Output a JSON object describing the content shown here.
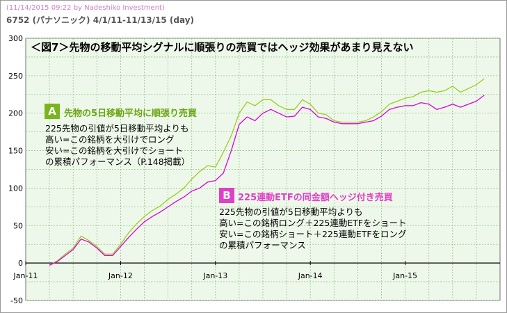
{
  "header": {
    "credit": "(11/14/2015 09:22 by Nadeshiko Investment)",
    "heading": "6752 (パナソニック) 4/1/11-11/13/15 (day)"
  },
  "annotation_a": {
    "badge": "A",
    "title": "先物の5日移動平均に順張り売買",
    "lines": [
      "225先物の引値が5日移動平均よりも",
      "高い=この銘柄を大引けでロング",
      "安い=この銘柄を大引けでショート",
      "の累積パフォーマンス（P.148掲載）"
    ]
  },
  "annotation_b": {
    "badge": "B",
    "title": "225連動ETFの同金額ヘッジ付き売買",
    "lines": [
      "225先物の引値が5日移動平均よりも",
      "高い=この銘柄ロング＋225連動ETFをショート",
      "安い=この銘柄ショート＋225連動ETFをロング",
      "の累積パフォーマンス"
    ]
  },
  "colors": {
    "series_a": "#9acd20",
    "series_b": "#dd00dd",
    "badge_a": "#7ab51d",
    "badge_b": "#e040c8",
    "plot_bg": "#eef8ea",
    "grid": "#8fc48a"
  },
  "chart_data": {
    "type": "line",
    "title": "＜図7＞先物の移動平均シグナルに順張りの売買ではヘッジ効果があまり見えない",
    "xlabel": "",
    "ylabel": "",
    "x_ticks": [
      "Jan-11",
      "Jan-12",
      "Jan-13",
      "Jan-14",
      "Jan-15"
    ],
    "x_range": [
      "2011-01",
      "2016-01"
    ],
    "y_ticks": [
      -50,
      0,
      50,
      100,
      150,
      200,
      250,
      300
    ],
    "ylim": [
      -50,
      300
    ],
    "grid": true,
    "legend": "none",
    "series": [
      {
        "name": "A",
        "x": [
          "2011-04",
          "2011-05",
          "2011-06",
          "2011-07",
          "2011-08",
          "2011-09",
          "2011-10",
          "2011-11",
          "2011-12",
          "2012-01",
          "2012-02",
          "2012-03",
          "2012-04",
          "2012-05",
          "2012-06",
          "2012-07",
          "2012-08",
          "2012-09",
          "2012-10",
          "2012-11",
          "2012-12",
          "2013-01",
          "2013-02",
          "2013-03",
          "2013-04",
          "2013-05",
          "2013-06",
          "2013-07",
          "2013-08",
          "2013-09",
          "2013-10",
          "2013-11",
          "2013-12",
          "2014-01",
          "2014-02",
          "2014-03",
          "2014-04",
          "2014-05",
          "2014-06",
          "2014-07",
          "2014-08",
          "2014-09",
          "2014-10",
          "2014-11",
          "2014-12",
          "2015-01",
          "2015-02",
          "2015-03",
          "2015-04",
          "2015-05",
          "2015-06",
          "2015-07",
          "2015-08",
          "2015-09",
          "2015-10",
          "2015-11"
        ],
        "values": [
          -3,
          3,
          12,
          20,
          36,
          30,
          22,
          12,
          12,
          25,
          40,
          52,
          62,
          70,
          76,
          85,
          92,
          100,
          112,
          122,
          130,
          128,
          148,
          170,
          200,
          215,
          210,
          218,
          218,
          210,
          205,
          205,
          218,
          212,
          200,
          198,
          190,
          188,
          188,
          188,
          190,
          195,
          202,
          212,
          216,
          220,
          222,
          228,
          230,
          228,
          230,
          236,
          228,
          233,
          238,
          246
        ]
      },
      {
        "name": "B",
        "x": [
          "2011-04",
          "2011-05",
          "2011-06",
          "2011-07",
          "2011-08",
          "2011-09",
          "2011-10",
          "2011-11",
          "2011-12",
          "2012-01",
          "2012-02",
          "2012-03",
          "2012-04",
          "2012-05",
          "2012-06",
          "2012-07",
          "2012-08",
          "2012-09",
          "2012-10",
          "2012-11",
          "2012-12",
          "2013-01",
          "2013-02",
          "2013-03",
          "2013-04",
          "2013-05",
          "2013-06",
          "2013-07",
          "2013-08",
          "2013-09",
          "2013-10",
          "2013-11",
          "2013-12",
          "2014-01",
          "2014-02",
          "2014-03",
          "2014-04",
          "2014-05",
          "2014-06",
          "2014-07",
          "2014-08",
          "2014-09",
          "2014-10",
          "2014-11",
          "2014-12",
          "2015-01",
          "2015-02",
          "2015-03",
          "2015-04",
          "2015-05",
          "2015-06",
          "2015-07",
          "2015-08",
          "2015-09",
          "2015-10",
          "2015-11"
        ],
        "values": [
          -3,
          2,
          10,
          18,
          32,
          28,
          20,
          10,
          10,
          22,
          34,
          45,
          55,
          62,
          68,
          75,
          82,
          88,
          96,
          100,
          108,
          110,
          120,
          150,
          185,
          195,
          190,
          200,
          205,
          200,
          195,
          196,
          208,
          205,
          195,
          193,
          188,
          186,
          186,
          186,
          188,
          190,
          196,
          205,
          208,
          210,
          210,
          214,
          212,
          205,
          208,
          212,
          208,
          212,
          216,
          224
        ]
      }
    ]
  }
}
